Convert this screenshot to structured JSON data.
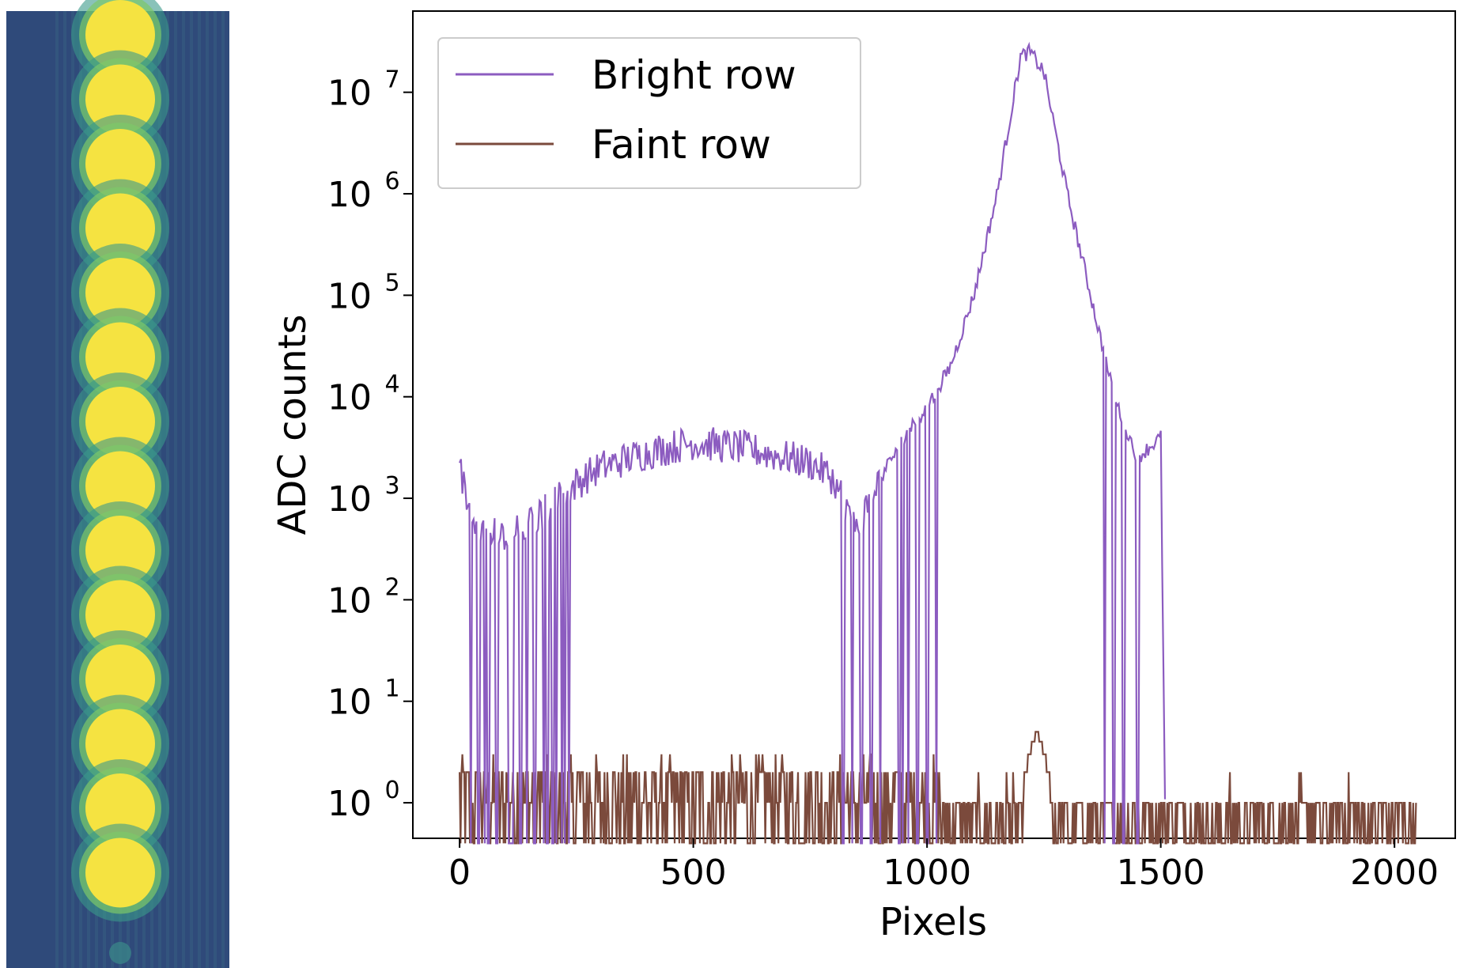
{
  "image_panel": {
    "description_colors": {
      "background": "#2f4a7a",
      "spot": "#f5e341",
      "halo": "#3a9a8a"
    },
    "spot_count": 14
  },
  "chart_data": {
    "type": "line",
    "xlabel": "Pixels",
    "ylabel": "ADC counts",
    "xlim": [
      -100,
      2130
    ],
    "ylim_log10": [
      -0.35,
      7.8
    ],
    "y_scale": "log",
    "grid": false,
    "legend_position": "top-left",
    "x_ticks": [
      0,
      500,
      1000,
      1500,
      2000
    ],
    "x_tick_labels": [
      "0",
      "500",
      "1000",
      "1500",
      "2000"
    ],
    "y_ticks_log10": [
      0,
      1,
      2,
      3,
      4,
      5,
      6,
      7
    ],
    "y_tick_labels": [
      "0",
      "1",
      "2",
      "3",
      "4",
      "5",
      "6",
      "7"
    ],
    "y_tick_base": "10",
    "series": [
      {
        "name": "Bright row",
        "color": "#8c5cc0",
        "envelope_log10": [
          [
            0,
            3.3
          ],
          [
            20,
            2.9
          ],
          [
            50,
            2.7
          ],
          [
            100,
            2.6
          ],
          [
            150,
            2.75
          ],
          [
            200,
            2.95
          ],
          [
            250,
            3.15
          ],
          [
            300,
            3.3
          ],
          [
            400,
            3.45
          ],
          [
            500,
            3.55
          ],
          [
            600,
            3.5
          ],
          [
            700,
            3.4
          ],
          [
            750,
            3.35
          ],
          [
            800,
            3.2
          ],
          [
            850,
            2.7
          ],
          [
            900,
            3.2
          ],
          [
            950,
            3.6
          ],
          [
            1000,
            3.9
          ],
          [
            1050,
            4.3
          ],
          [
            1100,
            5.0
          ],
          [
            1150,
            6.0
          ],
          [
            1200,
            7.35
          ],
          [
            1220,
            7.4
          ],
          [
            1250,
            7.2
          ],
          [
            1300,
            6.0
          ],
          [
            1350,
            5.0
          ],
          [
            1400,
            4.0
          ],
          [
            1450,
            3.4
          ],
          [
            1500,
            3.6
          ],
          [
            1510,
            -0.4
          ]
        ],
        "dropouts": [
          40,
          60,
          80,
          110,
          130,
          160,
          180,
          200,
          225,
          820,
          840,
          860,
          880,
          900,
          940,
          960,
          980,
          1000,
          1020,
          1380,
          1400,
          1420,
          1450
        ]
      },
      {
        "name": "Faint row",
        "color": "#7b4a3c",
        "levels": [
          0,
          1,
          2,
          3,
          5
        ],
        "x_range": [
          0,
          2047
        ],
        "bump_center": 1235,
        "bump_peak": 5
      }
    ]
  }
}
